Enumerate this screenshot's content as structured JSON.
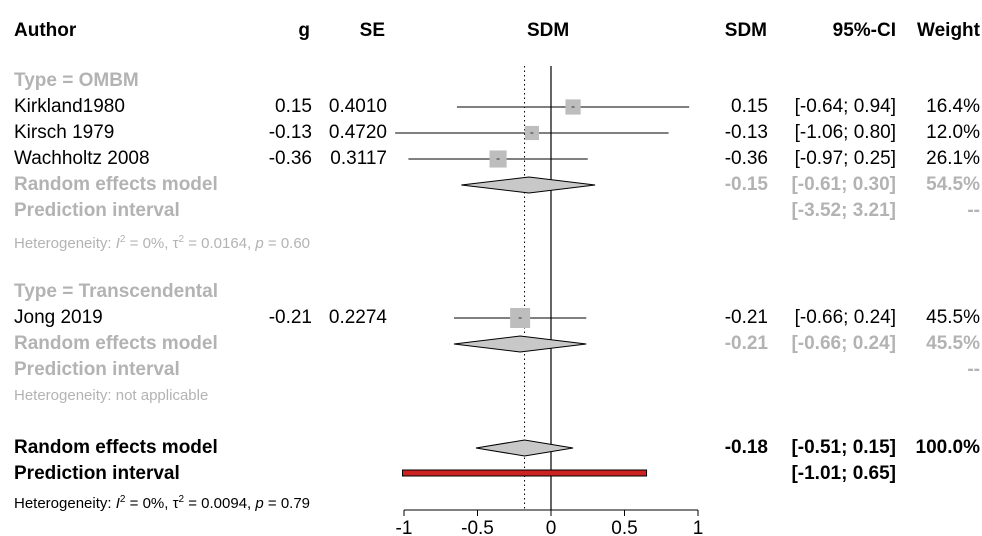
{
  "header": {
    "author": "Author",
    "g": "g",
    "se": "SE",
    "sdm_plot": "SDM",
    "sdm": "SDM",
    "ci": "95%-CI",
    "weight": "Weight"
  },
  "groups": [
    {
      "label": "Type = OMBM",
      "studies": [
        {
          "author": "Kirkland1980",
          "g": "0.15",
          "se": "0.4010",
          "sdm": "0.15",
          "ci": "[-0.64; 0.94]",
          "weight": "16.4%"
        },
        {
          "author": "Kirsch 1979",
          "g": "-0.13",
          "se": "0.4720",
          "sdm": "-0.13",
          "ci": "[-1.06; 0.80]",
          "weight": "12.0%"
        },
        {
          "author": "Wachholtz 2008",
          "g": "-0.36",
          "se": "0.3117",
          "sdm": "-0.36",
          "ci": "[-0.97; 0.25]",
          "weight": "26.1%"
        }
      ],
      "re_label": "Random effects model",
      "re_sdm": "-0.15",
      "re_ci": "[-0.61; 0.30]",
      "re_weight": "54.5%",
      "pi_label": "Prediction interval",
      "pi_ci": "[-3.52; 3.21]",
      "pi_weight": "--",
      "het_prefix": "Heterogeneity: ",
      "het_i2": "I",
      "het_i2_val": " = 0%, ",
      "het_tau": "τ",
      "het_tau_val": " = 0.0164, ",
      "het_p": "p",
      "het_p_val": " = 0.60"
    },
    {
      "label": "Type = Transcendental",
      "studies": [
        {
          "author": "Jong 2019",
          "g": "-0.21",
          "se": "0.2274",
          "sdm": "-0.21",
          "ci": "[-0.66; 0.24]",
          "weight": "45.5%"
        }
      ],
      "re_label": "Random effects model",
      "re_sdm": "-0.21",
      "re_ci": "[-0.66; 0.24]",
      "re_weight": "45.5%",
      "pi_label": "Prediction interval",
      "pi_weight": "--",
      "het_text": "Heterogeneity: not applicable"
    }
  ],
  "overall": {
    "re_label": "Random effects model",
    "re_sdm": "-0.18",
    "re_ci": "[-0.51; 0.15]",
    "re_weight": "100.0%",
    "pi_label": "Prediction interval",
    "pi_ci": "[-1.01; 0.65]",
    "het_prefix": "Heterogeneity: ",
    "het_i2": "I",
    "het_i2_val": " = 0%, ",
    "het_tau": "τ",
    "het_tau_val": " = 0.0094, ",
    "het_p": "p",
    "het_p_val": " = 0.79"
  },
  "chart_data": {
    "type": "forest",
    "x_axis": {
      "ticks": [
        -1,
        -0.5,
        0,
        0.5,
        1
      ],
      "tick_labels": [
        "-1",
        "-0.5",
        "0",
        "0.5",
        "1"
      ],
      "xlim": [
        -1,
        1
      ]
    },
    "reference_line": 0,
    "overall_line": -0.18,
    "studies": [
      {
        "author": "Kirkland1980",
        "est": 0.15,
        "lo": -0.64,
        "hi": 0.94,
        "weight": 16.4
      },
      {
        "author": "Kirsch 1979",
        "est": -0.13,
        "lo": -1.06,
        "hi": 0.8,
        "weight": 12.0
      },
      {
        "author": "Wachholtz 2008",
        "est": -0.36,
        "lo": -0.97,
        "hi": 0.25,
        "weight": 26.1
      },
      {
        "author": "Jong 2019",
        "est": -0.21,
        "lo": -0.66,
        "hi": 0.24,
        "weight": 45.5
      }
    ],
    "subgroup_diamonds": [
      {
        "group": "Type = OMBM",
        "est": -0.15,
        "lo": -0.61,
        "hi": 0.3
      },
      {
        "group": "Type = Transcendental",
        "est": -0.21,
        "lo": -0.66,
        "hi": 0.24
      }
    ],
    "overall_diamond": {
      "est": -0.18,
      "lo": -0.51,
      "hi": 0.15
    },
    "prediction_interval": {
      "lo": -1.01,
      "hi": 0.65
    },
    "colors": {
      "box": "#bdbdbd",
      "diamond": "#c8c8c8",
      "prediction": "#cc2222",
      "subgroup_text": "#b3b3b3"
    }
  }
}
